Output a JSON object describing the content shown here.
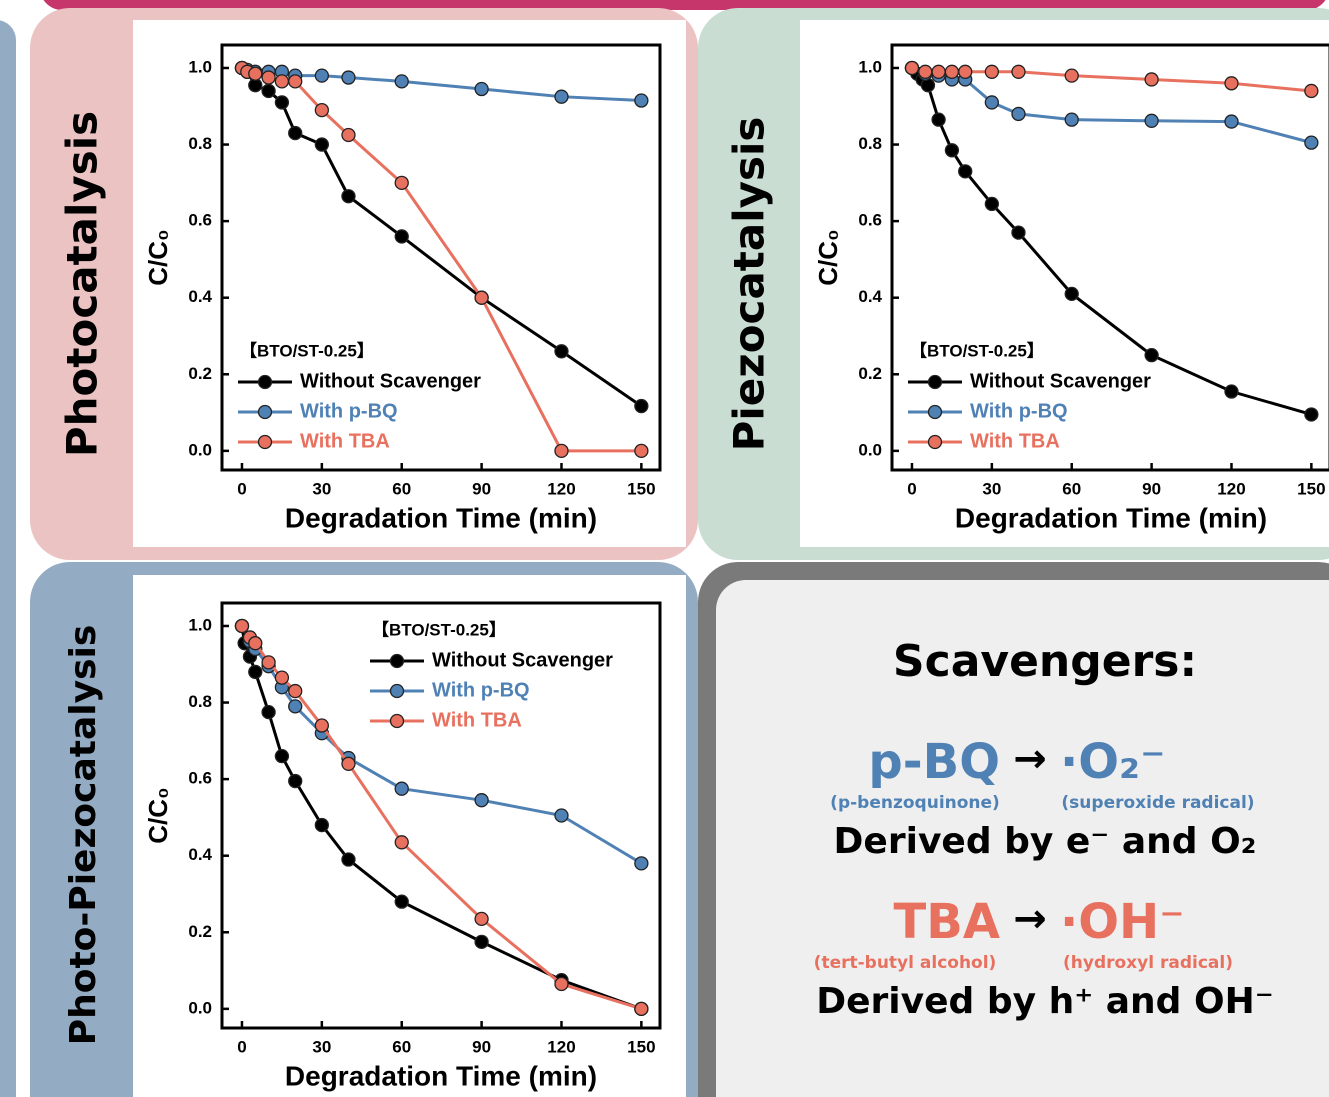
{
  "chart_data": [
    {
      "type": "line",
      "title": "Photocatalysis",
      "xlabel": "Degradation Time (min)",
      "ylabel": "C/C₀",
      "annotation": "【BTO/ST-0.25】",
      "legend": "lower left",
      "xlim": [
        -7.5,
        157
      ],
      "ylim": [
        -0.05,
        1.06
      ],
      "xticks": [
        0,
        30,
        60,
        90,
        120,
        150
      ],
      "yticks": [
        {
          "value": 0,
          "label": "0.0"
        },
        0.2,
        0.4,
        0.6,
        0.8,
        {
          "value": 1,
          "label": "1.0"
        }
      ],
      "series": [
        {
          "name": "Without Scavenger",
          "color": "#000000",
          "x": [
            0,
            2,
            5,
            10,
            15,
            20,
            30,
            40,
            60,
            90,
            120,
            150
          ],
          "values": [
            1.0,
            0.99,
            0.955,
            0.94,
            0.91,
            0.83,
            0.8,
            0.665,
            0.56,
            0.4,
            0.26,
            0.117
          ]
        },
        {
          "name": "With p-BQ",
          "color": "#4f81b5",
          "x": [
            0,
            2,
            5,
            10,
            15,
            20,
            30,
            40,
            60,
            90,
            120,
            150
          ],
          "values": [
            1.0,
            0.995,
            0.99,
            0.99,
            0.99,
            0.98,
            0.98,
            0.975,
            0.965,
            0.945,
            0.925,
            0.915
          ]
        },
        {
          "name": "With TBA",
          "color": "#e8705f",
          "x": [
            0,
            2,
            5,
            10,
            15,
            20,
            30,
            40,
            60,
            90,
            120,
            150
          ],
          "values": [
            1.0,
            0.99,
            0.985,
            0.975,
            0.965,
            0.965,
            0.89,
            0.825,
            0.7,
            0.4,
            0.0,
            0.0
          ]
        }
      ]
    },
    {
      "type": "line",
      "title": "Piezocatalysis",
      "xlabel": "Degradation Time (min)",
      "ylabel": "C/C₀",
      "annotation": "【BTO/ST-0.25】",
      "legend": "lower left",
      "xlim": [
        -7.5,
        157
      ],
      "ylim": [
        -0.05,
        1.06
      ],
      "xticks": [
        0,
        30,
        60,
        90,
        120,
        150
      ],
      "yticks": [
        {
          "value": 0,
          "label": "0.0"
        },
        0.2,
        0.4,
        0.6,
        0.8,
        {
          "value": 1,
          "label": "1.0"
        }
      ],
      "series": [
        {
          "name": "Without Scavenger",
          "color": "#000000",
          "x": [
            0,
            2,
            4,
            6,
            10,
            15,
            20,
            30,
            40,
            60,
            90,
            120,
            150
          ],
          "values": [
            1.0,
            0.985,
            0.97,
            0.955,
            0.865,
            0.785,
            0.73,
            0.645,
            0.57,
            0.41,
            0.25,
            0.155,
            0.095
          ]
        },
        {
          "name": "With p-BQ",
          "color": "#4f81b5",
          "x": [
            0,
            5,
            10,
            15,
            20,
            30,
            40,
            60,
            90,
            120,
            150
          ],
          "values": [
            1.0,
            0.985,
            0.98,
            0.97,
            0.97,
            0.91,
            0.88,
            0.865,
            0.862,
            0.86,
            0.805
          ]
        },
        {
          "name": "With TBA",
          "color": "#e8705f",
          "x": [
            0,
            5,
            10,
            15,
            20,
            30,
            40,
            60,
            90,
            120,
            150
          ],
          "values": [
            1.0,
            0.99,
            0.99,
            0.99,
            0.99,
            0.99,
            0.99,
            0.98,
            0.97,
            0.96,
            0.94
          ]
        }
      ]
    },
    {
      "type": "line",
      "title": "Photo-Piezocatalysis",
      "xlabel": "Degradation Time (min)",
      "ylabel": "C/C₀",
      "annotation": "【BTO/ST-0.25】",
      "legend": "upper right",
      "xlim": [
        -7.5,
        157
      ],
      "ylim": [
        -0.05,
        1.06
      ],
      "xticks": [
        0,
        30,
        60,
        90,
        120,
        150
      ],
      "yticks": [
        {
          "value": 0,
          "label": "0.0"
        },
        0.2,
        0.4,
        0.6,
        0.8,
        {
          "value": 1,
          "label": "1.0"
        }
      ],
      "series": [
        {
          "name": "Without Scavenger",
          "color": "#000000",
          "x": [
            0,
            1,
            3,
            5,
            10,
            15,
            20,
            30,
            40,
            60,
            90,
            120,
            150
          ],
          "values": [
            1.0,
            0.955,
            0.92,
            0.88,
            0.775,
            0.66,
            0.595,
            0.48,
            0.39,
            0.28,
            0.175,
            0.075,
            0.0
          ]
        },
        {
          "name": "With p-BQ",
          "color": "#4f81b5",
          "x": [
            0,
            3,
            5,
            10,
            15,
            20,
            30,
            40,
            60,
            90,
            120,
            150
          ],
          "values": [
            1.0,
            0.96,
            0.94,
            0.895,
            0.84,
            0.79,
            0.72,
            0.655,
            0.575,
            0.545,
            0.505,
            0.38
          ]
        },
        {
          "name": "With TBA",
          "color": "#e8705f",
          "x": [
            0,
            3,
            5,
            10,
            15,
            20,
            30,
            40,
            60,
            90,
            120,
            150
          ],
          "values": [
            1.0,
            0.97,
            0.955,
            0.905,
            0.865,
            0.83,
            0.74,
            0.64,
            0.435,
            0.235,
            0.065,
            0.0
          ]
        }
      ]
    }
  ],
  "scavengers": {
    "title": "Scavengers:",
    "items": [
      {
        "reagent": "p-BQ",
        "arrow": "→",
        "species": "·O₂⁻",
        "reagent_note": "(p-benzoquinone)",
        "species_note": "(superoxide radical)",
        "origin": "Derived by e⁻ and O₂",
        "color": "#4f81b5"
      },
      {
        "reagent": "TBA",
        "arrow": "→",
        "species": "·OH⁻",
        "reagent_note": "(tert-butyl alcohol)",
        "species_note": "(hydroxyl radical)",
        "origin": "Derived by h⁺ and OH⁻",
        "color": "#e8705f"
      }
    ]
  }
}
